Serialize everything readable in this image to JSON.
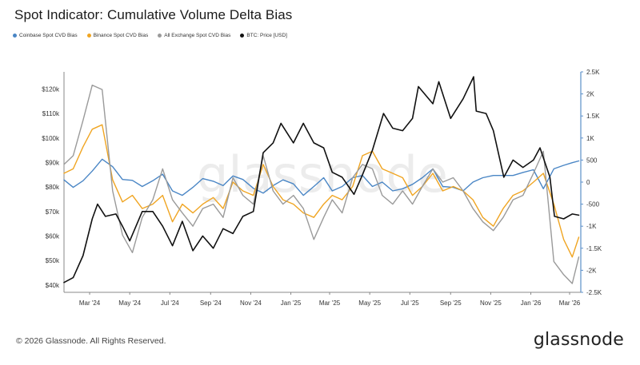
{
  "brand": {
    "logo": "glassnode",
    "copyright": "© 2026 Glassnode. All Rights Reserved."
  },
  "chart_data": {
    "type": "line",
    "title": "Spot Indicator: Cumulative Volume Delta Bias",
    "watermark": "glassnode",
    "legend_placement": "top-left",
    "grid": false,
    "x_ticks": [
      "Mar '24",
      "May '24",
      "Jul '24",
      "Sep '24",
      "Nov '24",
      "Jan '25",
      "Mar '25",
      "May '25",
      "Jul '25",
      "Sep '25",
      "Nov '25",
      "Jan '26",
      "Mar '26"
    ],
    "x_range": [
      "2024-01-22",
      "2026-03-18"
    ],
    "y_left": {
      "ticks": [
        "$120k",
        "$110k",
        "$100k",
        "$90k",
        "$80k",
        "$70k",
        "$60k",
        "$50k",
        "$40k"
      ],
      "ylim": [
        37000,
        127000
      ]
    },
    "y_right": {
      "ticks": [
        "2.5K",
        "2K",
        "1.5K",
        "1K",
        "500",
        "0",
        "-500",
        "-1K",
        "-1.5K",
        "-2K",
        "-2.5K"
      ],
      "ylim": [
        -2500,
        2500
      ]
    },
    "series": [
      {
        "name": "Coinbase Spot CVD Bias",
        "color": "#4a86c5",
        "axis": "right",
        "points": [
          [
            "2024-01-22",
            50
          ],
          [
            "2024-02-05",
            -120
          ],
          [
            "2024-02-20",
            30
          ],
          [
            "2024-03-05",
            250
          ],
          [
            "2024-03-20",
            520
          ],
          [
            "2024-04-05",
            350
          ],
          [
            "2024-04-20",
            60
          ],
          [
            "2024-05-05",
            40
          ],
          [
            "2024-05-20",
            -100
          ],
          [
            "2024-06-05",
            30
          ],
          [
            "2024-06-20",
            180
          ],
          [
            "2024-07-05",
            -200
          ],
          [
            "2024-07-20",
            -300
          ],
          [
            "2024-08-05",
            -120
          ],
          [
            "2024-08-20",
            80
          ],
          [
            "2024-09-05",
            20
          ],
          [
            "2024-09-20",
            -80
          ],
          [
            "2024-10-05",
            140
          ],
          [
            "2024-10-20",
            60
          ],
          [
            "2024-11-05",
            -140
          ],
          [
            "2024-11-20",
            -250
          ],
          [
            "2024-12-05",
            -80
          ],
          [
            "2024-12-20",
            50
          ],
          [
            "2025-01-05",
            -40
          ],
          [
            "2025-01-20",
            -300
          ],
          [
            "2025-02-05",
            -100
          ],
          [
            "2025-02-20",
            100
          ],
          [
            "2025-03-05",
            -200
          ],
          [
            "2025-03-20",
            -100
          ],
          [
            "2025-04-05",
            100
          ],
          [
            "2025-04-20",
            150
          ],
          [
            "2025-05-05",
            -100
          ],
          [
            "2025-05-20",
            0
          ],
          [
            "2025-06-05",
            -200
          ],
          [
            "2025-06-20",
            -150
          ],
          [
            "2025-07-05",
            -50
          ],
          [
            "2025-07-20",
            100
          ],
          [
            "2025-08-05",
            300
          ],
          [
            "2025-08-20",
            -100
          ],
          [
            "2025-09-05",
            -120
          ],
          [
            "2025-09-20",
            -200
          ],
          [
            "2025-10-05",
            0
          ],
          [
            "2025-10-20",
            100
          ],
          [
            "2025-11-05",
            150
          ],
          [
            "2025-11-20",
            150
          ],
          [
            "2025-12-05",
            150
          ],
          [
            "2025-12-20",
            220
          ],
          [
            "2026-01-05",
            280
          ],
          [
            "2026-01-20",
            -150
          ],
          [
            "2026-02-05",
            300
          ],
          [
            "2026-02-20",
            380
          ],
          [
            "2026-03-05",
            440
          ],
          [
            "2026-03-15",
            480
          ]
        ]
      },
      {
        "name": "Binance Spot CVD Bias",
        "color": "#f0a522",
        "axis": "right",
        "points": [
          [
            "2024-01-22",
            200
          ],
          [
            "2024-02-05",
            300
          ],
          [
            "2024-02-20",
            800
          ],
          [
            "2024-03-05",
            1200
          ],
          [
            "2024-03-20",
            1300
          ],
          [
            "2024-04-05",
            50
          ],
          [
            "2024-04-20",
            -450
          ],
          [
            "2024-05-05",
            -300
          ],
          [
            "2024-05-20",
            -600
          ],
          [
            "2024-06-05",
            -500
          ],
          [
            "2024-06-20",
            -300
          ],
          [
            "2024-07-05",
            -900
          ],
          [
            "2024-07-20",
            -500
          ],
          [
            "2024-08-05",
            -700
          ],
          [
            "2024-08-20",
            -500
          ],
          [
            "2024-09-05",
            -350
          ],
          [
            "2024-09-20",
            -600
          ],
          [
            "2024-10-05",
            0
          ],
          [
            "2024-10-20",
            -200
          ],
          [
            "2024-11-05",
            -300
          ],
          [
            "2024-11-20",
            400
          ],
          [
            "2024-12-05",
            -100
          ],
          [
            "2024-12-20",
            -400
          ],
          [
            "2025-01-05",
            -500
          ],
          [
            "2025-01-20",
            -700
          ],
          [
            "2025-02-05",
            -800
          ],
          [
            "2025-02-20",
            -500
          ],
          [
            "2025-03-05",
            -300
          ],
          [
            "2025-03-20",
            -400
          ],
          [
            "2025-04-05",
            -100
          ],
          [
            "2025-04-20",
            600
          ],
          [
            "2025-05-05",
            700
          ],
          [
            "2025-05-20",
            300
          ],
          [
            "2025-06-05",
            200
          ],
          [
            "2025-06-20",
            100
          ],
          [
            "2025-07-05",
            -300
          ],
          [
            "2025-07-20",
            -100
          ],
          [
            "2025-08-05",
            200
          ],
          [
            "2025-08-20",
            -200
          ],
          [
            "2025-09-05",
            -100
          ],
          [
            "2025-09-20",
            -200
          ],
          [
            "2025-10-05",
            -400
          ],
          [
            "2025-10-20",
            -800
          ],
          [
            "2025-11-05",
            -1000
          ],
          [
            "2025-11-20",
            -600
          ],
          [
            "2025-12-05",
            -300
          ],
          [
            "2025-12-20",
            -200
          ],
          [
            "2026-01-05",
            0
          ],
          [
            "2026-01-20",
            200
          ],
          [
            "2026-02-05",
            -500
          ],
          [
            "2026-02-20",
            -1300
          ],
          [
            "2026-03-05",
            -1700
          ],
          [
            "2026-03-15",
            -1250
          ]
        ]
      },
      {
        "name": "All Exchange Spot CVD Bias",
        "color": "#9a9a9a",
        "axis": "right",
        "points": [
          [
            "2024-01-22",
            400
          ],
          [
            "2024-02-05",
            600
          ],
          [
            "2024-02-20",
            1400
          ],
          [
            "2024-03-05",
            2200
          ],
          [
            "2024-03-20",
            2100
          ],
          [
            "2024-04-05",
            -200
          ],
          [
            "2024-04-20",
            -1200
          ],
          [
            "2024-05-05",
            -1600
          ],
          [
            "2024-05-20",
            -800
          ],
          [
            "2024-06-05",
            -400
          ],
          [
            "2024-06-20",
            300
          ],
          [
            "2024-07-05",
            -400
          ],
          [
            "2024-07-20",
            -700
          ],
          [
            "2024-08-05",
            -1000
          ],
          [
            "2024-08-20",
            -600
          ],
          [
            "2024-09-05",
            -500
          ],
          [
            "2024-09-20",
            -800
          ],
          [
            "2024-10-05",
            100
          ],
          [
            "2024-10-20",
            -300
          ],
          [
            "2024-11-05",
            -500
          ],
          [
            "2024-11-20",
            600
          ],
          [
            "2024-12-05",
            -200
          ],
          [
            "2024-12-20",
            -500
          ],
          [
            "2025-01-05",
            -300
          ],
          [
            "2025-01-20",
            -600
          ],
          [
            "2025-02-05",
            -1300
          ],
          [
            "2025-02-20",
            -800
          ],
          [
            "2025-03-05",
            -400
          ],
          [
            "2025-03-20",
            -700
          ],
          [
            "2025-04-05",
            100
          ],
          [
            "2025-04-20",
            400
          ],
          [
            "2025-05-05",
            300
          ],
          [
            "2025-05-20",
            -300
          ],
          [
            "2025-06-05",
            -500
          ],
          [
            "2025-06-20",
            -200
          ],
          [
            "2025-07-05",
            -500
          ],
          [
            "2025-07-20",
            -100
          ],
          [
            "2025-08-05",
            300
          ],
          [
            "2025-08-20",
            0
          ],
          [
            "2025-09-05",
            100
          ],
          [
            "2025-09-20",
            -200
          ],
          [
            "2025-10-05",
            -600
          ],
          [
            "2025-10-20",
            -900
          ],
          [
            "2025-11-05",
            -1100
          ],
          [
            "2025-11-20",
            -800
          ],
          [
            "2025-12-05",
            -400
          ],
          [
            "2025-12-20",
            -300
          ],
          [
            "2026-01-05",
            200
          ],
          [
            "2026-01-20",
            700
          ],
          [
            "2026-02-05",
            -1800
          ],
          [
            "2026-02-20",
            -2100
          ],
          [
            "2026-03-05",
            -2300
          ],
          [
            "2026-03-15",
            -1700
          ]
        ]
      },
      {
        "name": "BTC: Price [USD]",
        "color": "#111111",
        "axis": "left",
        "points": [
          [
            "2024-01-22",
            41000
          ],
          [
            "2024-02-05",
            43000
          ],
          [
            "2024-02-20",
            52000
          ],
          [
            "2024-03-05",
            67000
          ],
          [
            "2024-03-13",
            73000
          ],
          [
            "2024-03-25",
            68000
          ],
          [
            "2024-04-10",
            69000
          ],
          [
            "2024-04-20",
            64000
          ],
          [
            "2024-05-01",
            58000
          ],
          [
            "2024-05-20",
            70000
          ],
          [
            "2024-06-05",
            70000
          ],
          [
            "2024-06-20",
            64000
          ],
          [
            "2024-07-05",
            56000
          ],
          [
            "2024-07-20",
            66000
          ],
          [
            "2024-08-05",
            54000
          ],
          [
            "2024-08-20",
            60000
          ],
          [
            "2024-09-05",
            55000
          ],
          [
            "2024-09-20",
            63000
          ],
          [
            "2024-10-05",
            61000
          ],
          [
            "2024-10-20",
            68000
          ],
          [
            "2024-11-05",
            70000
          ],
          [
            "2024-11-20",
            94000
          ],
          [
            "2024-12-05",
            98000
          ],
          [
            "2024-12-17",
            106000
          ],
          [
            "2025-01-05",
            98000
          ],
          [
            "2025-01-20",
            106000
          ],
          [
            "2025-02-05",
            98000
          ],
          [
            "2025-02-20",
            96000
          ],
          [
            "2025-03-05",
            86000
          ],
          [
            "2025-03-20",
            84000
          ],
          [
            "2025-04-07",
            77000
          ],
          [
            "2025-04-20",
            85000
          ],
          [
            "2025-05-05",
            95000
          ],
          [
            "2025-05-22",
            110000
          ],
          [
            "2025-06-05",
            104000
          ],
          [
            "2025-06-20",
            103000
          ],
          [
            "2025-07-05",
            108000
          ],
          [
            "2025-07-14",
            121000
          ],
          [
            "2025-08-05",
            114000
          ],
          [
            "2025-08-14",
            123000
          ],
          [
            "2025-09-01",
            108000
          ],
          [
            "2025-09-20",
            116000
          ],
          [
            "2025-10-06",
            125000
          ],
          [
            "2025-10-10",
            111000
          ],
          [
            "2025-10-25",
            110000
          ],
          [
            "2025-11-05",
            103000
          ],
          [
            "2025-11-21",
            84000
          ],
          [
            "2025-12-05",
            91000
          ],
          [
            "2025-12-20",
            88000
          ],
          [
            "2026-01-05",
            91000
          ],
          [
            "2026-01-15",
            96000
          ],
          [
            "2026-01-30",
            84000
          ],
          [
            "2026-02-06",
            68000
          ],
          [
            "2026-02-20",
            67000
          ],
          [
            "2026-03-05",
            69000
          ],
          [
            "2026-03-15",
            68500
          ]
        ]
      }
    ]
  }
}
